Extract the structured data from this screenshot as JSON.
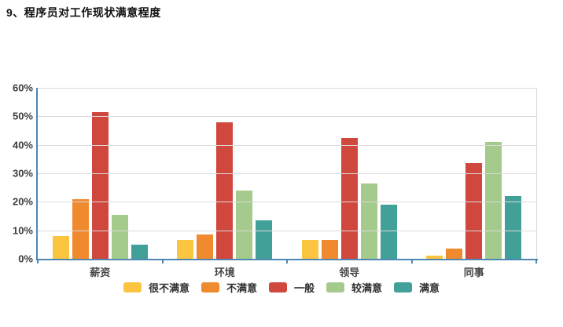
{
  "page": {
    "title": "9、程序员对工作现状满意程度"
  },
  "chart_data": {
    "type": "bar",
    "title": "9、程序员对工作现状满意程度",
    "categories": [
      "薪资",
      "环境",
      "领导",
      "同事"
    ],
    "series": [
      {
        "name": "很不满意",
        "color": "#FBC441",
        "values": [
          8,
          6.5,
          6.5,
          1
        ]
      },
      {
        "name": "不满意",
        "color": "#F08A2E",
        "values": [
          21,
          8.5,
          6.5,
          3.5
        ]
      },
      {
        "name": "一般",
        "color": "#D0473E",
        "values": [
          51.5,
          48,
          42.5,
          33.5
        ]
      },
      {
        "name": "较满意",
        "color": "#A4CB8B",
        "values": [
          15.5,
          24,
          26.5,
          41
        ]
      },
      {
        "name": "满意",
        "color": "#41A098",
        "values": [
          5,
          13.5,
          19,
          22
        ]
      }
    ],
    "xlabel": "",
    "ylabel": "",
    "ylim": [
      0,
      60
    ],
    "ytick_step": 10,
    "ytick_suffix": "%",
    "grid": true,
    "legend_position": "bottom"
  },
  "style": {
    "axis_color": "#4D87B2",
    "grid_color": "#DADADA",
    "tick_label_color": "#3C3C3C"
  }
}
